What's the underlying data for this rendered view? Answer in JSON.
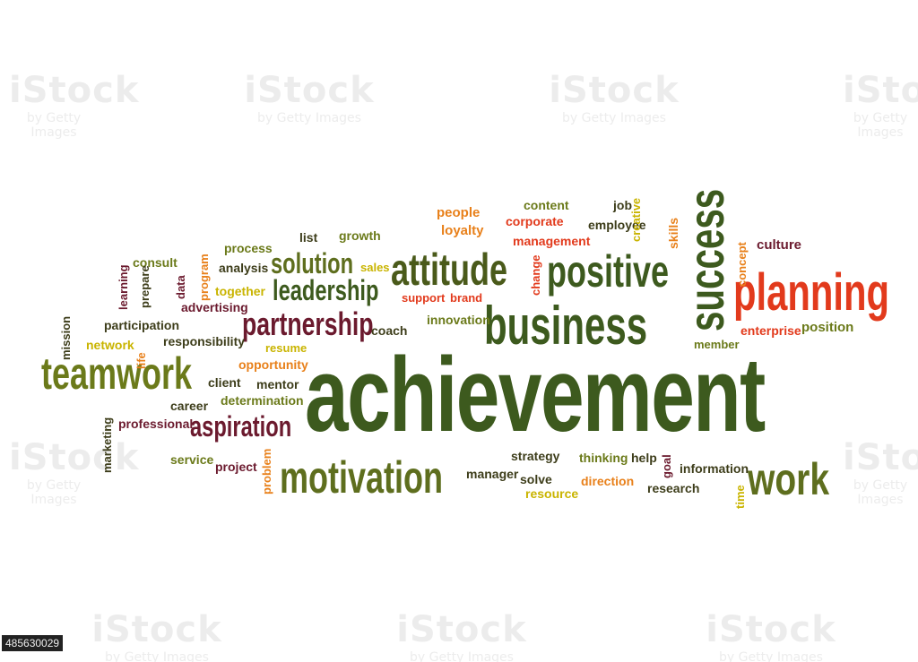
{
  "watermark": {
    "brand": "iStock",
    "sub": "by Getty Images"
  },
  "stock_id": "485630029",
  "colors": {
    "dark_olive": "#3d5a1e",
    "olive": "#6b7a1a",
    "maroon": "#6b1a2e",
    "red": "#e23a1c",
    "orange": "#e8801a",
    "yellow": "#c9b400"
  },
  "words": {
    "achievement": "achievement",
    "business": "business",
    "attitude": "attitude",
    "positive": "positive",
    "success": "success",
    "planning": "planning",
    "motivation": "motivation",
    "teamwork": "teamwork",
    "work": "work",
    "leadership": "leadership",
    "partnership": "partnership",
    "solution": "solution",
    "aspiration": "aspiration",
    "people": "people",
    "loyalty": "loyalty",
    "content": "content",
    "corporate": "corporate",
    "management": "management",
    "job": "job",
    "employee": "employee",
    "creative": "creative",
    "skills": "skills",
    "culture": "culture",
    "concept": "concept",
    "change": "change",
    "support": "support",
    "brand": "brand",
    "innovation": "innovation",
    "enterprise": "enterprise",
    "position": "position",
    "member": "member",
    "process": "process",
    "list": "list",
    "growth": "growth",
    "consult": "consult",
    "analysis": "analysis",
    "sales": "sales",
    "learning": "learning",
    "prepare": "prepare",
    "data": "data",
    "program": "program",
    "together": "together",
    "advertising": "advertising",
    "participation": "participation",
    "coach": "coach",
    "mission": "mission",
    "network": "network",
    "responsibility": "responsibility",
    "resume": "resume",
    "life": "life",
    "opportunity": "opportunity",
    "client": "client",
    "mentor": "mentor",
    "determination": "determination",
    "career": "career",
    "professional": "professional",
    "marketing": "marketing",
    "service": "service",
    "project": "project",
    "problem": "problem",
    "strategy": "strategy",
    "thinking": "thinking",
    "help": "help",
    "goal": "goal",
    "information": "information",
    "manager": "manager",
    "solve": "solve",
    "resource": "resource",
    "direction": "direction",
    "research": "research",
    "time": "time"
  }
}
